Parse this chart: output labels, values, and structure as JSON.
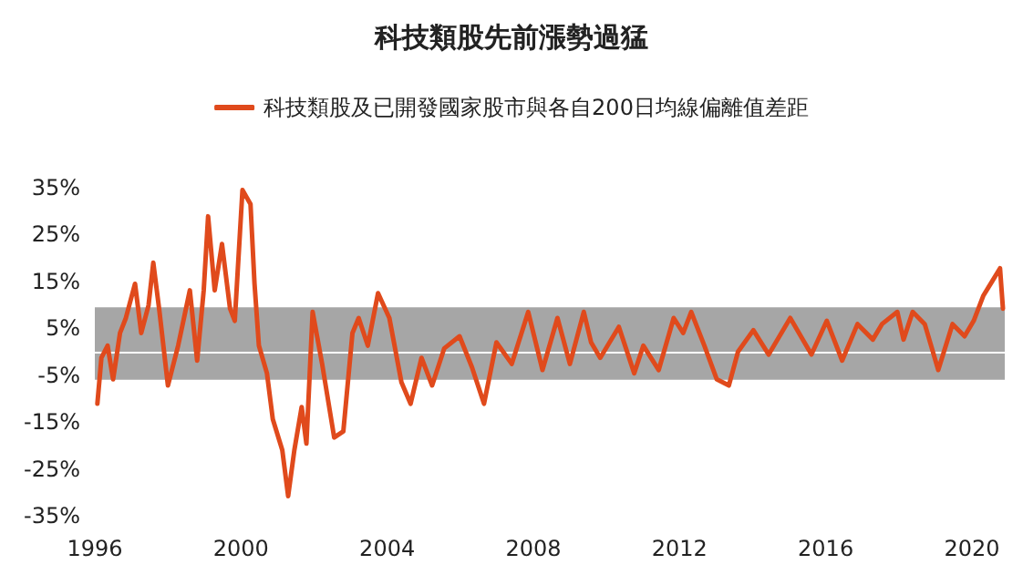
{
  "chart_data": {
    "type": "line",
    "title": "科技類股先前漲勢過猛",
    "x": [
      1996.07,
      1996.18,
      1996.35,
      1996.5,
      1996.69,
      1996.85,
      1997.1,
      1997.27,
      1997.47,
      1997.6,
      1997.77,
      1998.0,
      1998.28,
      1998.6,
      1998.8,
      1998.98,
      1999.1,
      1999.28,
      1999.48,
      1999.7,
      1999.83,
      2000.04,
      2000.26,
      2000.37,
      2000.49,
      2000.71,
      2000.87,
      2001.13,
      2001.29,
      2001.46,
      2001.66,
      2001.79,
      2001.96,
      2002.22,
      2002.55,
      2002.8,
      2003.05,
      2003.22,
      2003.47,
      2003.75,
      2004.06,
      2004.39,
      2004.64,
      2004.94,
      2005.23,
      2005.56,
      2005.98,
      2006.32,
      2006.65,
      2006.99,
      2007.41,
      2007.86,
      2008.25,
      2008.66,
      2009.0,
      2009.38,
      2009.58,
      2009.83,
      2010.34,
      2010.76,
      2011.01,
      2011.43,
      2011.84,
      2012.1,
      2012.32,
      2012.68,
      2013.02,
      2013.35,
      2013.6,
      2014.02,
      2014.44,
      2015.03,
      2015.61,
      2016.03,
      2016.45,
      2016.87,
      2017.29,
      2017.54,
      2017.96,
      2018.13,
      2018.38,
      2018.71,
      2019.08,
      2019.47,
      2019.8,
      2020.05,
      2020.31,
      2020.56,
      2020.77,
      2020.85
    ],
    "series": [
      {
        "name": "科技類股及已開發國家股市與各自200日均線偏離值差距",
        "color": "#e04a1c",
        "values": [
          -11.1,
          -1.3,
          1.3,
          -5.9,
          4,
          7.2,
          14.5,
          4,
          9.9,
          19,
          8.5,
          -7.2,
          1.3,
          13.1,
          -1.9,
          13.1,
          28.9,
          13.1,
          23,
          9.2,
          6.6,
          34.5,
          31.5,
          14.5,
          1.3,
          -4.6,
          -14.4,
          -21,
          -30.8,
          -21,
          -11.8,
          -19.6,
          8.5,
          -2.6,
          -18.3,
          -17,
          4,
          7.2,
          1.3,
          12.5,
          7.2,
          -6.5,
          -11.1,
          -1.3,
          -7.2,
          0.7,
          3.3,
          -3.3,
          -11.1,
          2,
          -2.6,
          8.5,
          -3.9,
          7.2,
          -2.6,
          8.5,
          2,
          -1.3,
          5.3,
          -4.6,
          1.3,
          -3.9,
          7.2,
          4,
          8.5,
          1.3,
          -5.9,
          -7.2,
          0,
          4.6,
          -0.6,
          7.2,
          -0.6,
          6.6,
          -1.9,
          5.9,
          2.6,
          5.9,
          8.5,
          2.6,
          8.5,
          5.9,
          -3.9,
          5.9,
          3.3,
          6.6,
          11.9,
          15.1,
          17.8,
          9.2
        ]
      }
    ],
    "xlim": [
      1996,
      2020.9
    ],
    "xticks": [
      1996,
      2000,
      2004,
      2008,
      2012,
      2016,
      2020
    ],
    "ylim": [
      -35,
      35
    ],
    "yticks": [
      {
        "value": -35,
        "label": "-35%"
      },
      {
        "value": -25,
        "label": "-25%"
      },
      {
        "value": -15,
        "label": "-15%"
      },
      {
        "value": -5,
        "label": "-5%"
      },
      {
        "value": 5,
        "label": "5%"
      },
      {
        "value": 15,
        "label": "15%"
      },
      {
        "value": 25,
        "label": "25%"
      },
      {
        "value": 35,
        "label": "35%"
      }
    ],
    "bands": [
      {
        "axis": "y",
        "from": -6,
        "to": 9.5,
        "color": "#a6a6a6"
      }
    ],
    "ref_lines": [
      {
        "axis": "y",
        "value": 0,
        "color": "#ffffff"
      }
    ],
    "grid": false,
    "legend": "top",
    "marker": "none",
    "line_style": "solid"
  }
}
